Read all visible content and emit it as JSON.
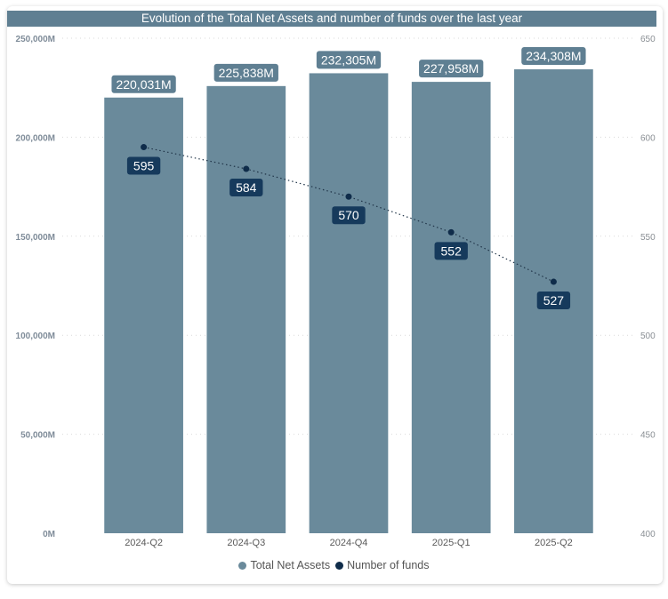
{
  "chart_data": {
    "type": "bar",
    "title": "Evolution of the Total Net Assets and number of funds over the last year",
    "categories": [
      "2024-Q2",
      "2024-Q3",
      "2024-Q4",
      "2025-Q1",
      "2025-Q2"
    ],
    "series": [
      {
        "name": "Total Net Assets",
        "type": "bar",
        "axis": "left",
        "values": [
          220031,
          225838,
          232305,
          227958,
          234308
        ],
        "labels": [
          "220,031M",
          "225,838M",
          "232,305M",
          "227,958M",
          "234,308M"
        ],
        "color": "#6a8a9b"
      },
      {
        "name": "Number of funds",
        "type": "line",
        "axis": "right",
        "values": [
          595,
          584,
          570,
          552,
          527
        ],
        "labels": [
          "595",
          "584",
          "570",
          "552",
          "527"
        ],
        "color": "#0f2c4a"
      }
    ],
    "y_left": {
      "ylim": [
        0,
        250000
      ],
      "ticks": [
        0,
        50000,
        100000,
        150000,
        200000,
        250000
      ],
      "tick_labels": [
        "0M",
        "50,000M",
        "100,000M",
        "150,000M",
        "200,000M",
        "250,000M"
      ]
    },
    "y_right": {
      "ylim": [
        400,
        650
      ],
      "ticks": [
        400,
        450,
        500,
        550,
        600,
        650
      ],
      "tick_labels": [
        "400",
        "450",
        "500",
        "550",
        "600",
        "650"
      ]
    },
    "grid": true,
    "legend_position": "bottom-center"
  },
  "colors": {
    "title_bg": "#5f7f92",
    "bar": "#6a8a9b",
    "bar_label_bg": "#5f7f92",
    "point": "#0f2c4a",
    "point_label_bg": "#163a5c",
    "legend_assets": "#6a8a9b",
    "legend_funds": "#0f2c4a"
  }
}
